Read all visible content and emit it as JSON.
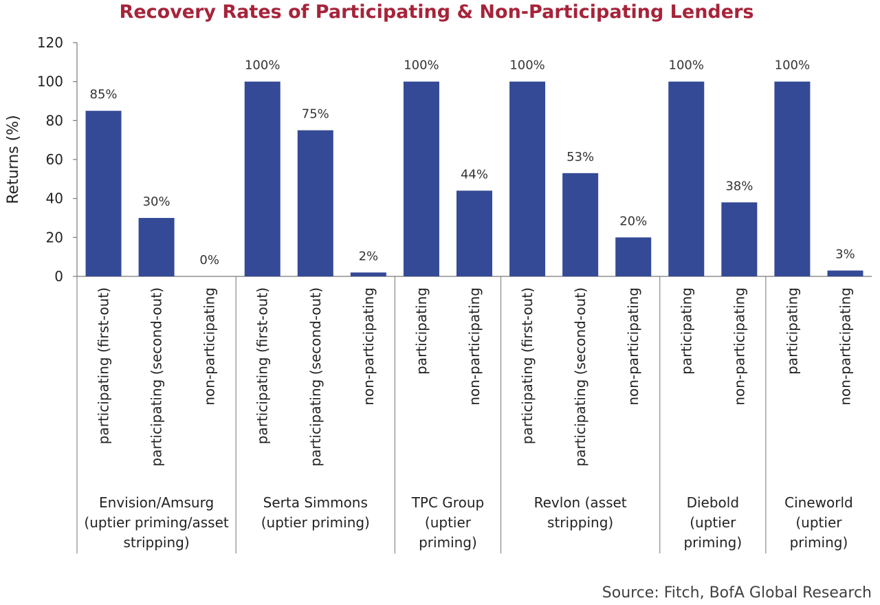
{
  "chart_data": {
    "type": "bar",
    "title": "Recovery Rates of Participating & Non-Participating Lenders",
    "ylabel": "Returns (%)",
    "xlabel": "",
    "ylim": [
      0,
      120
    ],
    "yticks": [
      "0",
      "20",
      "40",
      "60",
      "80",
      "100",
      "120"
    ],
    "bar_color": "#344a96",
    "grid": false,
    "groups": [
      {
        "name": [
          "Envision/Amsurg",
          "(uptier priming/asset",
          "stripping)"
        ],
        "categories": [
          "participating (first-out)",
          "participating (second-out)",
          "non-participating"
        ],
        "values": [
          85,
          30,
          0
        ],
        "labels": [
          "85%",
          "30%",
          "0%"
        ]
      },
      {
        "name": [
          "Serta Simmons",
          "(uptier priming)"
        ],
        "categories": [
          "participating (first-out)",
          "participating (second-out)",
          "non-participating"
        ],
        "values": [
          100,
          75,
          2
        ],
        "labels": [
          "100%",
          "75%",
          "2%"
        ]
      },
      {
        "name": [
          "TPC Group",
          "(uptier",
          "priming)"
        ],
        "categories": [
          "participating",
          "non-participating"
        ],
        "values": [
          100,
          44
        ],
        "labels": [
          "100%",
          "44%"
        ]
      },
      {
        "name": [
          "Revlon (asset",
          "stripping)"
        ],
        "categories": [
          "participating (first-out)",
          "participating (second-out)",
          "non-participating"
        ],
        "values": [
          100,
          53,
          20
        ],
        "labels": [
          "100%",
          "53%",
          "20%"
        ]
      },
      {
        "name": [
          "Diebold",
          "(uptier",
          "priming)"
        ],
        "categories": [
          "participating",
          "non-participating"
        ],
        "values": [
          100,
          38
        ],
        "labels": [
          "100%",
          "38%"
        ]
      },
      {
        "name": [
          "Cineworld",
          "(uptier",
          "priming)"
        ],
        "categories": [
          "participating",
          "non-participating"
        ],
        "values": [
          100,
          3
        ],
        "labels": [
          "100%",
          "3%"
        ]
      }
    ]
  },
  "source": "Source: Fitch, BofA Global Research"
}
